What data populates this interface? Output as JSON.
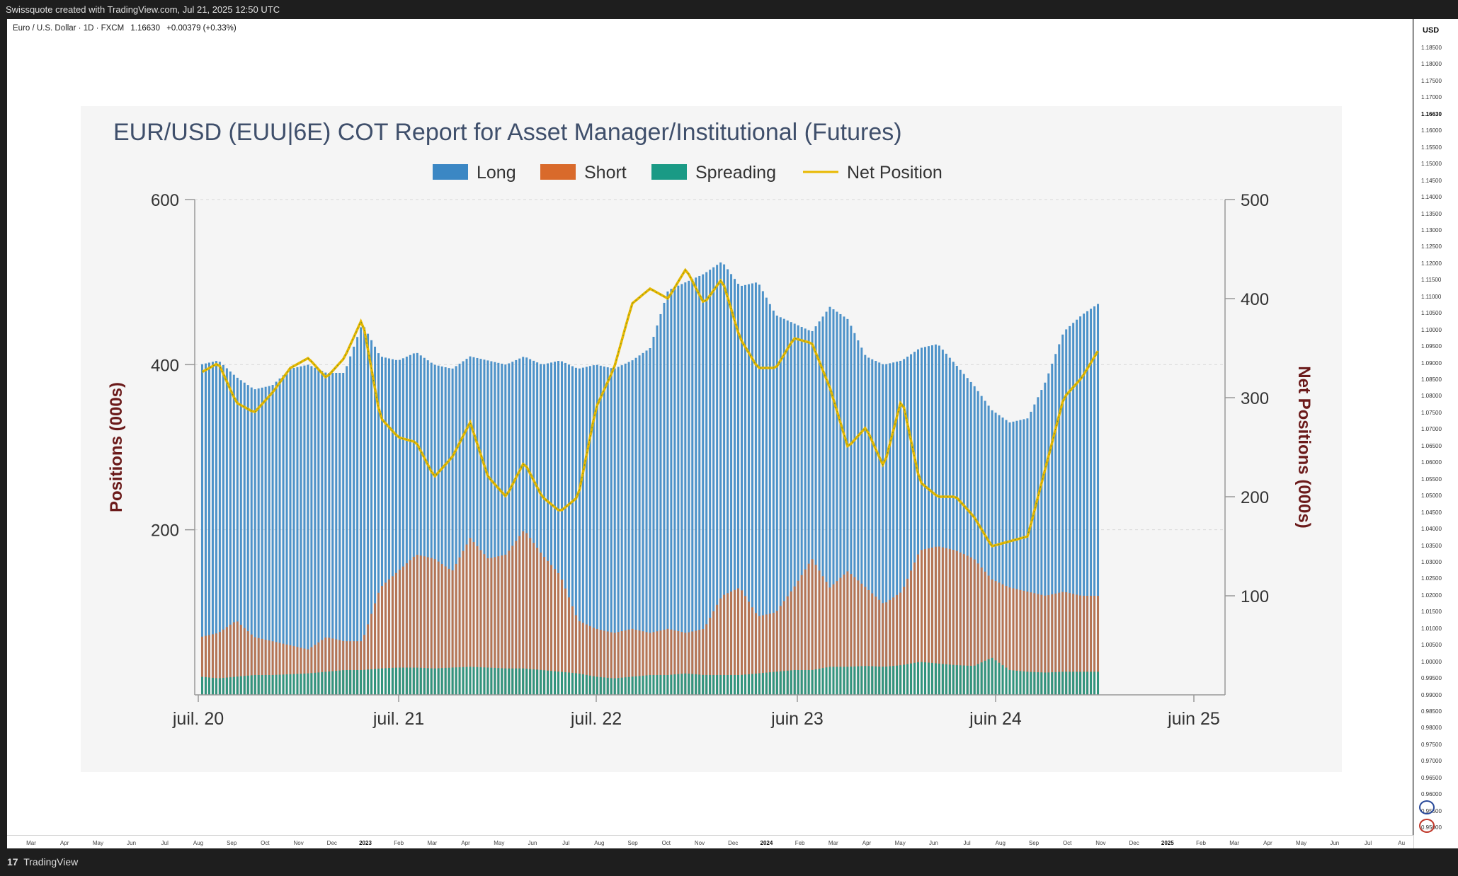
{
  "header": {
    "text": "Swissquote created with TradingView.com, Jul 21, 2025 12:50 UTC"
  },
  "symbol": {
    "name": "Euro / U.S. Dollar · 1D · FXCM",
    "price": "1.16630",
    "change": "+0.00379 (+0.33%)"
  },
  "price_axis": {
    "currency": "USD",
    "ticks": [
      "1.18500",
      "1.18000",
      "1.17500",
      "1.17000",
      "1.16630",
      "1.16000",
      "1.15500",
      "1.15000",
      "1.14500",
      "1.14000",
      "1.13500",
      "1.13000",
      "1.12500",
      "1.12000",
      "1.11500",
      "1.11000",
      "1.10500",
      "1.10000",
      "1.09500",
      "1.09000",
      "1.08500",
      "1.08000",
      "1.07500",
      "1.07000",
      "1.06500",
      "1.06000",
      "1.05500",
      "1.05000",
      "1.04500",
      "1.04000",
      "1.03500",
      "1.03000",
      "1.02500",
      "1.02000",
      "1.01500",
      "1.01000",
      "1.00500",
      "1.00000",
      "0.99500",
      "0.99000",
      "0.98500",
      "0.98000",
      "0.97500",
      "0.97000",
      "0.96500",
      "0.96000",
      "0.95500",
      "0.95000"
    ]
  },
  "time_axis": {
    "ticks": [
      {
        "label": "Mar",
        "bold": false
      },
      {
        "label": "Apr",
        "bold": false
      },
      {
        "label": "May",
        "bold": false
      },
      {
        "label": "Jun",
        "bold": false
      },
      {
        "label": "Jul",
        "bold": false
      },
      {
        "label": "Aug",
        "bold": false
      },
      {
        "label": "Sep",
        "bold": false
      },
      {
        "label": "Oct",
        "bold": false
      },
      {
        "label": "Nov",
        "bold": false
      },
      {
        "label": "Dec",
        "bold": false
      },
      {
        "label": "2023",
        "bold": true
      },
      {
        "label": "Feb",
        "bold": false
      },
      {
        "label": "Mar",
        "bold": false
      },
      {
        "label": "Apr",
        "bold": false
      },
      {
        "label": "May",
        "bold": false
      },
      {
        "label": "Jun",
        "bold": false
      },
      {
        "label": "Jul",
        "bold": false
      },
      {
        "label": "Aug",
        "bold": false
      },
      {
        "label": "Sep",
        "bold": false
      },
      {
        "label": "Oct",
        "bold": false
      },
      {
        "label": "Nov",
        "bold": false
      },
      {
        "label": "Dec",
        "bold": false
      },
      {
        "label": "2024",
        "bold": true
      },
      {
        "label": "Feb",
        "bold": false
      },
      {
        "label": "Mar",
        "bold": false
      },
      {
        "label": "Apr",
        "bold": false
      },
      {
        "label": "May",
        "bold": false
      },
      {
        "label": "Jun",
        "bold": false
      },
      {
        "label": "Jul",
        "bold": false
      },
      {
        "label": "Aug",
        "bold": false
      },
      {
        "label": "Sep",
        "bold": false
      },
      {
        "label": "Oct",
        "bold": false
      },
      {
        "label": "Nov",
        "bold": false
      },
      {
        "label": "Dec",
        "bold": false
      },
      {
        "label": "2025",
        "bold": true
      },
      {
        "label": "Feb",
        "bold": false
      },
      {
        "label": "Mar",
        "bold": false
      },
      {
        "label": "Apr",
        "bold": false
      },
      {
        "label": "May",
        "bold": false
      },
      {
        "label": "Jun",
        "bold": false
      },
      {
        "label": "Jul",
        "bold": false
      },
      {
        "label": "Au",
        "bold": false
      }
    ]
  },
  "footer": {
    "logo": "17",
    "brand": "TradingView"
  },
  "colors": {
    "long": "#3b87c4",
    "short": "#d96a2b",
    "spreading": "#1a9a85",
    "net": "#e8b800",
    "axis_title": "#6b1a1a",
    "title": "#3f4f6b"
  },
  "chart_data": {
    "type": "bar",
    "title": "EUR/USD (EUU|6E) COT Report for Asset Manager/Institutional (Futures)",
    "legend": [
      "Long",
      "Short",
      "Spreading",
      "Net Position"
    ],
    "legend_placement": "top",
    "ylabel": "Positions (000s)",
    "y2label": "Net Positions (000s)",
    "ylim": [
      0,
      600
    ],
    "y2lim": [
      0,
      500
    ],
    "yticks": [
      "200",
      "400",
      "600"
    ],
    "y2ticks": [
      "100",
      "200",
      "300",
      "400",
      "500"
    ],
    "xticks": [
      "juil. 20",
      "juil. 21",
      "juil. 22",
      "juin 23",
      "juin 24",
      "juin 25"
    ],
    "xlim": [
      2020.5,
      2025.5
    ],
    "grid": true,
    "series": [
      {
        "name": "Long",
        "x": [
          2020.5,
          2020.6,
          2020.7,
          2020.8,
          2020.9,
          2021.0,
          2021.1,
          2021.2,
          2021.3,
          2021.4,
          2021.5,
          2021.6,
          2021.7,
          2021.8,
          2021.9,
          2022.0,
          2022.1,
          2022.2,
          2022.3,
          2022.4,
          2022.5,
          2022.6,
          2022.7,
          2022.8,
          2022.9,
          2023.0,
          2023.1,
          2023.2,
          2023.3,
          2023.4,
          2023.5,
          2023.6,
          2023.7,
          2023.8,
          2023.9,
          2024.0,
          2024.1,
          2024.2,
          2024.3,
          2024.4,
          2024.5,
          2024.6,
          2024.7,
          2024.8,
          2024.9,
          2025.0,
          2025.1,
          2025.2,
          2025.3,
          2025.4,
          2025.5
        ],
        "values": [
          400,
          405,
          385,
          370,
          375,
          395,
          400,
          390,
          390,
          450,
          410,
          405,
          415,
          400,
          395,
          410,
          405,
          400,
          410,
          400,
          405,
          395,
          400,
          395,
          405,
          420,
          490,
          500,
          510,
          525,
          495,
          500,
          460,
          450,
          440,
          470,
          455,
          410,
          400,
          405,
          420,
          425,
          400,
          375,
          345,
          330,
          335,
          380,
          440,
          460,
          475
        ]
      },
      {
        "name": "Short",
        "x": [
          2020.5,
          2020.6,
          2020.7,
          2020.8,
          2020.9,
          2021.0,
          2021.1,
          2021.2,
          2021.3,
          2021.4,
          2021.5,
          2021.6,
          2021.7,
          2021.8,
          2021.9,
          2022.0,
          2022.1,
          2022.2,
          2022.3,
          2022.4,
          2022.5,
          2022.6,
          2022.7,
          2022.8,
          2022.9,
          2023.0,
          2023.1,
          2023.2,
          2023.3,
          2023.4,
          2023.5,
          2023.6,
          2023.7,
          2023.8,
          2023.9,
          2024.0,
          2024.1,
          2024.2,
          2024.3,
          2024.4,
          2024.5,
          2024.6,
          2024.7,
          2024.8,
          2024.9,
          2025.0,
          2025.1,
          2025.2,
          2025.3,
          2025.4,
          2025.5
        ],
        "values": [
          70,
          75,
          90,
          70,
          65,
          60,
          55,
          70,
          65,
          65,
          130,
          150,
          170,
          165,
          150,
          190,
          165,
          170,
          200,
          170,
          145,
          90,
          80,
          75,
          80,
          75,
          80,
          75,
          80,
          120,
          130,
          95,
          100,
          130,
          165,
          130,
          150,
          130,
          110,
          125,
          175,
          180,
          175,
          165,
          140,
          130,
          125,
          120,
          125,
          120,
          120
        ]
      },
      {
        "name": "Spreading",
        "x": [
          2020.5,
          2020.6,
          2020.7,
          2020.8,
          2020.9,
          2021.0,
          2021.1,
          2021.2,
          2021.3,
          2021.4,
          2021.5,
          2021.6,
          2021.7,
          2021.8,
          2021.9,
          2022.0,
          2022.1,
          2022.2,
          2022.3,
          2022.4,
          2022.5,
          2022.6,
          2022.7,
          2022.8,
          2022.9,
          2023.0,
          2023.1,
          2023.2,
          2023.3,
          2023.4,
          2023.5,
          2023.6,
          2023.7,
          2023.8,
          2023.9,
          2024.0,
          2024.1,
          2024.2,
          2024.3,
          2024.4,
          2024.5,
          2024.6,
          2024.7,
          2024.8,
          2024.9,
          2025.0,
          2025.1,
          2025.2,
          2025.3,
          2025.4,
          2025.5
        ],
        "values": [
          22,
          20,
          22,
          24,
          24,
          25,
          26,
          28,
          30,
          30,
          32,
          33,
          33,
          32,
          33,
          34,
          33,
          32,
          32,
          30,
          28,
          26,
          22,
          20,
          22,
          24,
          24,
          26,
          24,
          24,
          24,
          26,
          28,
          30,
          30,
          34,
          34,
          35,
          34,
          36,
          40,
          38,
          36,
          35,
          45,
          30,
          28,
          27,
          28,
          28,
          28
        ]
      },
      {
        "name": "Net Position",
        "x": [
          2020.5,
          2020.6,
          2020.7,
          2020.8,
          2020.9,
          2021.0,
          2021.1,
          2021.2,
          2021.3,
          2021.4,
          2021.5,
          2021.6,
          2021.7,
          2021.8,
          2021.9,
          2022.0,
          2022.1,
          2022.2,
          2022.3,
          2022.4,
          2022.5,
          2022.6,
          2022.7,
          2022.8,
          2022.9,
          2023.0,
          2023.1,
          2023.2,
          2023.3,
          2023.4,
          2023.5,
          2023.6,
          2023.7,
          2023.8,
          2023.9,
          2024.0,
          2024.1,
          2024.2,
          2024.3,
          2024.4,
          2024.5,
          2024.6,
          2024.7,
          2024.8,
          2024.9,
          2025.0,
          2025.1,
          2025.2,
          2025.3,
          2025.4,
          2025.5
        ],
        "values": [
          325,
          335,
          295,
          285,
          305,
          330,
          340,
          320,
          340,
          380,
          280,
          260,
          255,
          220,
          240,
          275,
          220,
          200,
          235,
          200,
          185,
          200,
          290,
          330,
          395,
          410,
          400,
          430,
          395,
          420,
          360,
          330,
          330,
          360,
          355,
          310,
          250,
          270,
          230,
          300,
          215,
          200,
          200,
          180,
          150,
          155,
          160,
          230,
          300,
          320,
          350
        ]
      }
    ]
  }
}
